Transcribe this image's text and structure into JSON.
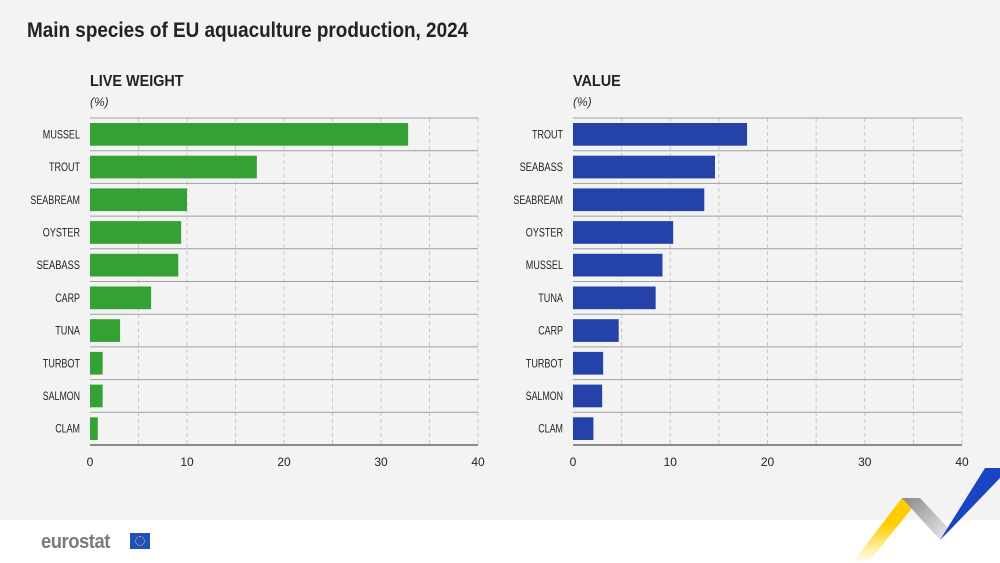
{
  "title": "Main species of EU aquaculture production, 2024",
  "colors": {
    "live_weight": "#33a133",
    "value": "#2442a8",
    "background": "#f3f3f3"
  },
  "logo": "eurostat",
  "chart_data": [
    {
      "type": "bar",
      "orientation": "horizontal",
      "title": "LIVE WEIGHT",
      "unit": "(%)",
      "categories": [
        "MUSSEL",
        "TROUT",
        "SEABREAM",
        "OYSTER",
        "SEABASS",
        "CARP",
        "TUNA",
        "TURBOT",
        "SALMON",
        "CLAM"
      ],
      "values": [
        32.8,
        17.2,
        10.0,
        9.4,
        9.1,
        6.3,
        3.1,
        1.3,
        1.3,
        0.8
      ],
      "xlim": [
        0,
        40
      ],
      "xticks": [
        "0",
        "10",
        "20",
        "30",
        "40"
      ],
      "grid": true
    },
    {
      "type": "bar",
      "orientation": "horizontal",
      "title": "VALUE",
      "unit": "(%)",
      "categories": [
        "TROUT",
        "SEABASS",
        "SEABREAM",
        "OYSTER",
        "MUSSEL",
        "TUNA",
        "CARP",
        "TURBOT",
        "SALMON",
        "CLAM"
      ],
      "values": [
        17.9,
        14.6,
        13.5,
        10.3,
        9.2,
        8.5,
        4.7,
        3.1,
        3.0,
        2.1
      ],
      "xlim": [
        0,
        40
      ],
      "xticks": [
        "0",
        "10",
        "20",
        "30",
        "40"
      ],
      "grid": true
    }
  ]
}
